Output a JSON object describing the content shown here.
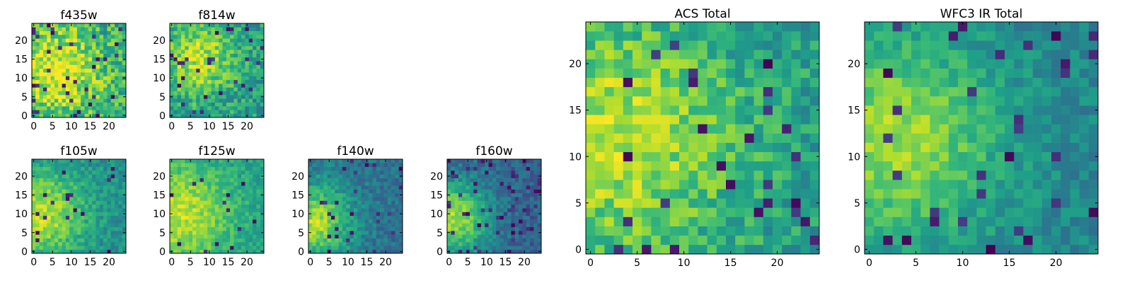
{
  "figure": {
    "colormap": "viridis",
    "colors": {
      "viridis_stops": [
        "#440154",
        "#482878",
        "#3e4989",
        "#31688e",
        "#26828e",
        "#1f9e89",
        "#35b779",
        "#6ece58",
        "#b5de2b",
        "#fde725"
      ],
      "axes": "#000000",
      "background": "#ffffff"
    }
  },
  "chart_data": [
    {
      "type": "heatmap",
      "title": "f435w",
      "size": 25,
      "xticks": [
        0,
        5,
        10,
        15,
        20
      ],
      "yticks": [
        0,
        5,
        10,
        15,
        20
      ],
      "xlim": [
        -0.5,
        24.5
      ],
      "ylim": [
        -0.5,
        24.5
      ],
      "center": [
        6,
        12
      ],
      "sigma": 9,
      "peak": 0.35,
      "base": 0.6,
      "noise": 0.42,
      "seed": 11,
      "holes": 0.05,
      "levels": "normalized 0-1 intensity, noisy"
    },
    {
      "type": "heatmap",
      "title": "f814w",
      "size": 25,
      "xticks": [
        0,
        5,
        10,
        15,
        20
      ],
      "yticks": [
        0,
        5,
        10,
        15,
        20
      ],
      "xlim": [
        -0.5,
        24.5
      ],
      "ylim": [
        -0.5,
        24.5
      ],
      "center": [
        7,
        15
      ],
      "sigma": 7,
      "peak": 0.35,
      "base": 0.55,
      "noise": 0.34,
      "seed": 23,
      "holes": 0.04,
      "levels": "normalized 0-1 intensity"
    },
    {
      "type": "heatmap",
      "title": "f105w",
      "size": 25,
      "xticks": [
        0,
        5,
        10,
        15,
        20
      ],
      "yticks": [
        0,
        5,
        10,
        15,
        20
      ],
      "xlim": [
        -0.5,
        24.5
      ],
      "ylim": [
        -0.5,
        24.5
      ],
      "center": [
        2,
        10
      ],
      "sigma": 8,
      "peak": 0.4,
      "base": 0.5,
      "noise": 0.22,
      "seed": 37,
      "holes": 0.03,
      "levels": "normalized 0-1 intensity"
    },
    {
      "type": "heatmap",
      "title": "f125w",
      "size": 25,
      "xticks": [
        0,
        5,
        10,
        15,
        20
      ],
      "yticks": [
        0,
        5,
        10,
        15,
        20
      ],
      "xlim": [
        -0.5,
        24.5
      ],
      "ylim": [
        -0.5,
        24.5
      ],
      "center": [
        2,
        10
      ],
      "sigma": 10,
      "peak": 0.35,
      "base": 0.55,
      "noise": 0.2,
      "seed": 41,
      "holes": 0.02,
      "levels": "normalized 0-1 intensity"
    },
    {
      "type": "heatmap",
      "title": "f140w",
      "size": 25,
      "xticks": [
        0,
        5,
        10,
        15,
        20
      ],
      "yticks": [
        0,
        5,
        10,
        15,
        20
      ],
      "xlim": [
        -0.5,
        24.5
      ],
      "ylim": [
        -0.5,
        24.5
      ],
      "center": [
        1,
        8
      ],
      "sigma": 7,
      "peak": 0.5,
      "base": 0.38,
      "noise": 0.22,
      "seed": 53,
      "holes": 0.05,
      "levels": "normalized 0-1 intensity"
    },
    {
      "type": "heatmap",
      "title": "f160w",
      "size": 25,
      "xticks": [
        0,
        5,
        10,
        15,
        20
      ],
      "yticks": [
        0,
        5,
        10,
        15,
        20
      ],
      "xlim": [
        -0.5,
        24.5
      ],
      "ylim": [
        -0.5,
        24.5
      ],
      "center": [
        1,
        9
      ],
      "sigma": 7,
      "peak": 0.55,
      "base": 0.32,
      "noise": 0.2,
      "seed": 67,
      "holes": 0.08,
      "levels": "normalized 0-1 intensity"
    },
    {
      "type": "heatmap",
      "title": "ACS Total",
      "size": 25,
      "xticks": [
        0,
        5,
        10,
        15,
        20
      ],
      "yticks": [
        0,
        5,
        10,
        15,
        20
      ],
      "xlim": [
        -0.5,
        24.5
      ],
      "ylim": [
        -0.5,
        24.5
      ],
      "center": [
        3,
        12
      ],
      "sigma": 9,
      "peak": 0.35,
      "base": 0.55,
      "noise": 0.3,
      "seed": 79,
      "holes": 0.05,
      "levels": "normalized 0-1 intensity"
    },
    {
      "type": "heatmap",
      "title": "WFC3 IR Total",
      "size": 25,
      "xticks": [
        0,
        5,
        10,
        15,
        20
      ],
      "yticks": [
        0,
        5,
        10,
        15,
        20
      ],
      "xlim": [
        -0.5,
        24.5
      ],
      "ylim": [
        -0.5,
        24.5
      ],
      "center": [
        3,
        12
      ],
      "sigma": 8,
      "peak": 0.4,
      "base": 0.45,
      "noise": 0.2,
      "seed": 97,
      "holes": 0.05,
      "levels": "normalized 0-1 intensity"
    }
  ]
}
